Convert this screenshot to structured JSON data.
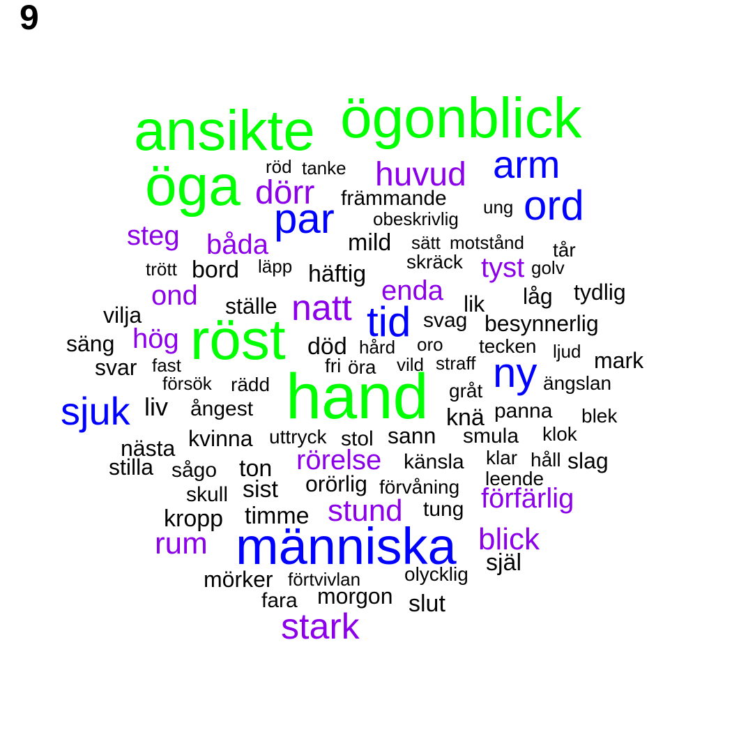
{
  "panel_label": "9",
  "colors": {
    "green": "#00ff00",
    "blue": "#0000ff",
    "purple": "#8b00e8",
    "black": "#000000"
  },
  "words": [
    {
      "text": "ansikte",
      "color": "green"
    },
    {
      "text": "ögonblick",
      "color": "green"
    },
    {
      "text": "öga",
      "color": "green"
    },
    {
      "text": "röst",
      "color": "green"
    },
    {
      "text": "hand",
      "color": "green"
    },
    {
      "text": "arm",
      "color": "blue"
    },
    {
      "text": "ord",
      "color": "blue"
    },
    {
      "text": "par",
      "color": "blue"
    },
    {
      "text": "tid",
      "color": "blue"
    },
    {
      "text": "ny",
      "color": "blue"
    },
    {
      "text": "sjuk",
      "color": "blue"
    },
    {
      "text": "människa",
      "color": "blue"
    },
    {
      "text": "huvud",
      "color": "purple"
    },
    {
      "text": "dörr",
      "color": "purple"
    },
    {
      "text": "steg",
      "color": "purple"
    },
    {
      "text": "båda",
      "color": "purple"
    },
    {
      "text": "tyst",
      "color": "purple"
    },
    {
      "text": "enda",
      "color": "purple"
    },
    {
      "text": "ond",
      "color": "purple"
    },
    {
      "text": "natt",
      "color": "purple"
    },
    {
      "text": "hög",
      "color": "purple"
    },
    {
      "text": "rörelse",
      "color": "purple"
    },
    {
      "text": "förfärlig",
      "color": "purple"
    },
    {
      "text": "stund",
      "color": "purple"
    },
    {
      "text": "rum",
      "color": "purple"
    },
    {
      "text": "blick",
      "color": "purple"
    },
    {
      "text": "stark",
      "color": "purple"
    },
    {
      "text": "röd",
      "color": "black"
    },
    {
      "text": "tanke",
      "color": "black"
    },
    {
      "text": "främmande",
      "color": "black"
    },
    {
      "text": "ung",
      "color": "black"
    },
    {
      "text": "obeskrivlig",
      "color": "black"
    },
    {
      "text": "mild",
      "color": "black"
    },
    {
      "text": "sätt",
      "color": "black"
    },
    {
      "text": "motstånd",
      "color": "black"
    },
    {
      "text": "tår",
      "color": "black"
    },
    {
      "text": "skräck",
      "color": "black"
    },
    {
      "text": "trött",
      "color": "black"
    },
    {
      "text": "bord",
      "color": "black"
    },
    {
      "text": "läpp",
      "color": "black"
    },
    {
      "text": "häftig",
      "color": "black"
    },
    {
      "text": "golv",
      "color": "black"
    },
    {
      "text": "tydlig",
      "color": "black"
    },
    {
      "text": "låg",
      "color": "black"
    },
    {
      "text": "lik",
      "color": "black"
    },
    {
      "text": "ställe",
      "color": "black"
    },
    {
      "text": "vilja",
      "color": "black"
    },
    {
      "text": "svag",
      "color": "black"
    },
    {
      "text": "besynnerlig",
      "color": "black"
    },
    {
      "text": "säng",
      "color": "black"
    },
    {
      "text": "död",
      "color": "black"
    },
    {
      "text": "hård",
      "color": "black"
    },
    {
      "text": "oro",
      "color": "black"
    },
    {
      "text": "tecken",
      "color": "black"
    },
    {
      "text": "ljud",
      "color": "black"
    },
    {
      "text": "svar",
      "color": "black"
    },
    {
      "text": "fast",
      "color": "black"
    },
    {
      "text": "fri",
      "color": "black"
    },
    {
      "text": "öra",
      "color": "black"
    },
    {
      "text": "vild",
      "color": "black"
    },
    {
      "text": "straff",
      "color": "black"
    },
    {
      "text": "mark",
      "color": "black"
    },
    {
      "text": "försök",
      "color": "black"
    },
    {
      "text": "rädd",
      "color": "black"
    },
    {
      "text": "gråt",
      "color": "black"
    },
    {
      "text": "ängslan",
      "color": "black"
    },
    {
      "text": "liv",
      "color": "black"
    },
    {
      "text": "ångest",
      "color": "black"
    },
    {
      "text": "knä",
      "color": "black"
    },
    {
      "text": "panna",
      "color": "black"
    },
    {
      "text": "blek",
      "color": "black"
    },
    {
      "text": "nästa",
      "color": "black"
    },
    {
      "text": "kvinna",
      "color": "black"
    },
    {
      "text": "uttryck",
      "color": "black"
    },
    {
      "text": "stol",
      "color": "black"
    },
    {
      "text": "sann",
      "color": "black"
    },
    {
      "text": "smula",
      "color": "black"
    },
    {
      "text": "klok",
      "color": "black"
    },
    {
      "text": "stilla",
      "color": "black"
    },
    {
      "text": "sågo",
      "color": "black"
    },
    {
      "text": "ton",
      "color": "black"
    },
    {
      "text": "känsla",
      "color": "black"
    },
    {
      "text": "klar",
      "color": "black"
    },
    {
      "text": "håll",
      "color": "black"
    },
    {
      "text": "slag",
      "color": "black"
    },
    {
      "text": "leende",
      "color": "black"
    },
    {
      "text": "sist",
      "color": "black"
    },
    {
      "text": "orörlig",
      "color": "black"
    },
    {
      "text": "förvåning",
      "color": "black"
    },
    {
      "text": "skull",
      "color": "black"
    },
    {
      "text": "kropp",
      "color": "black"
    },
    {
      "text": "timme",
      "color": "black"
    },
    {
      "text": "tung",
      "color": "black"
    },
    {
      "text": "själ",
      "color": "black"
    },
    {
      "text": "mörker",
      "color": "black"
    },
    {
      "text": "förtvivlan",
      "color": "black"
    },
    {
      "text": "olycklig",
      "color": "black"
    },
    {
      "text": "fara",
      "color": "black"
    },
    {
      "text": "morgon",
      "color": "black"
    },
    {
      "text": "slut",
      "color": "black"
    }
  ]
}
